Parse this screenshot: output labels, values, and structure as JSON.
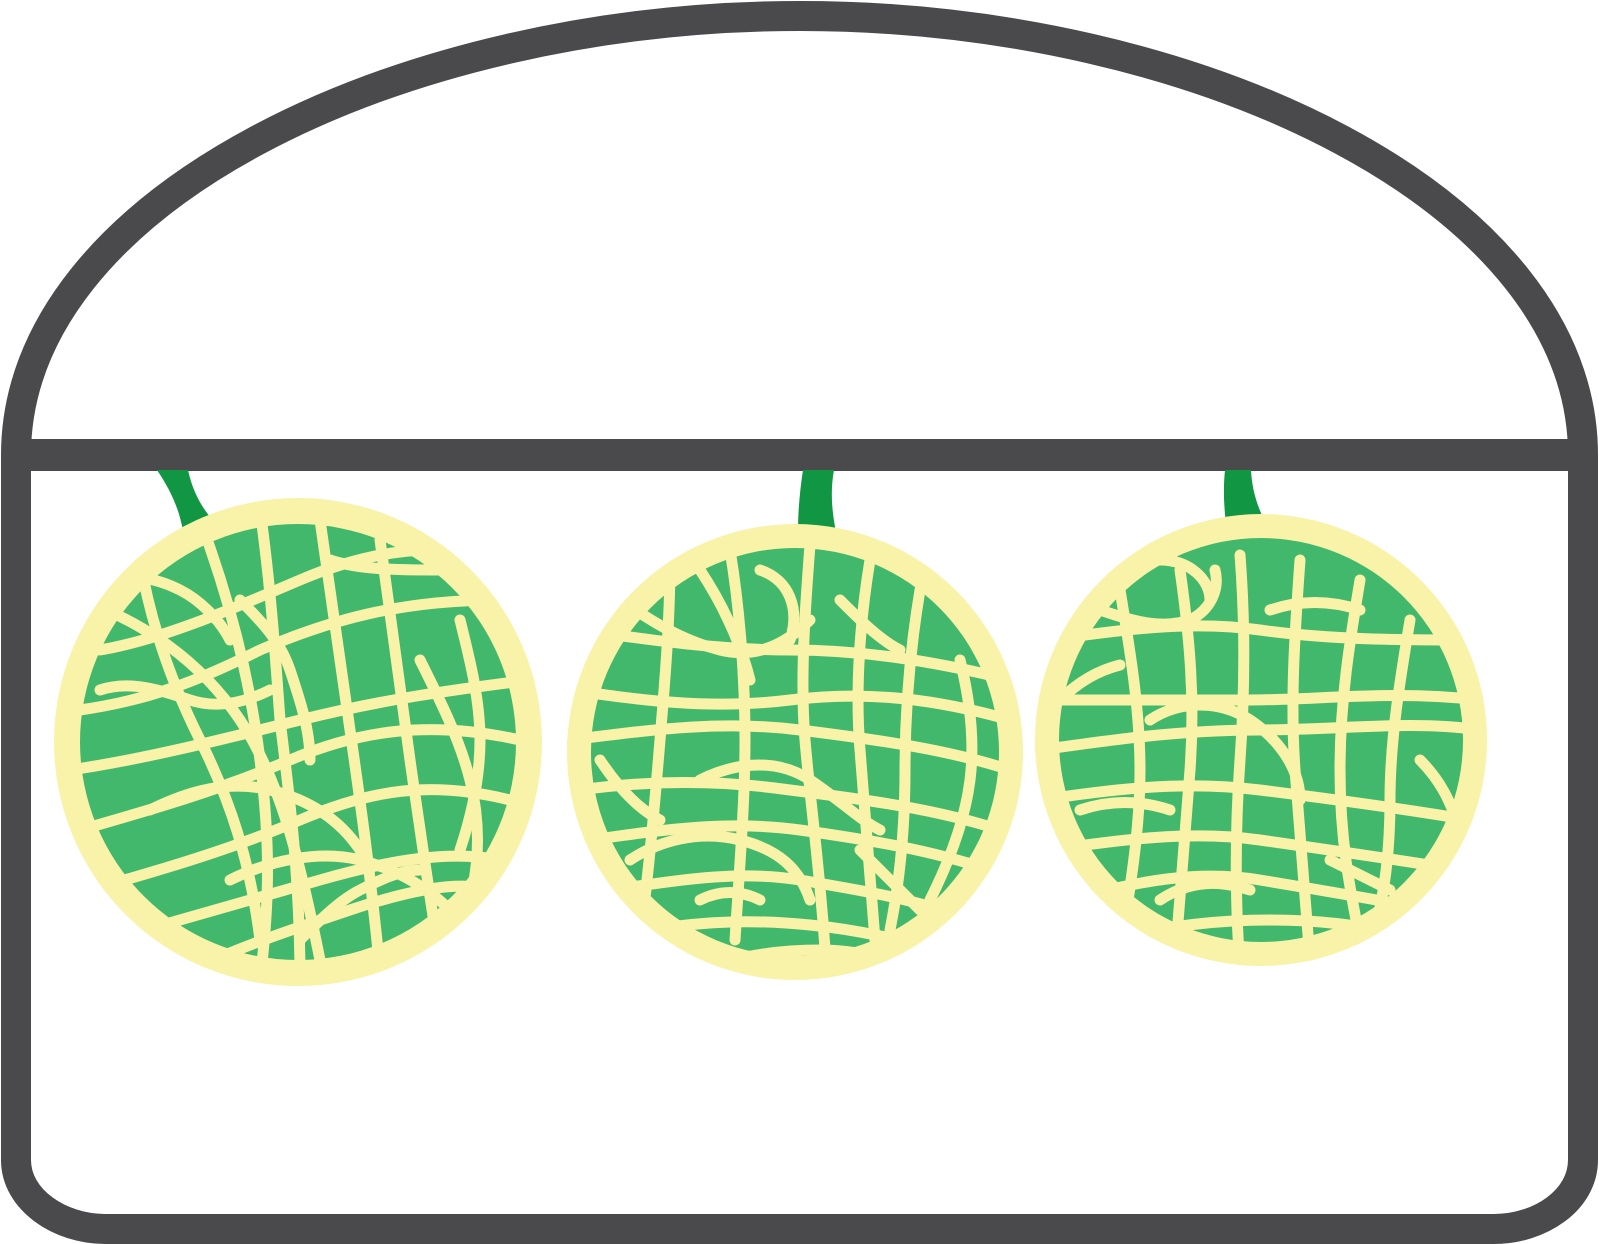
{
  "colors": {
    "outline": "#4a4a4c",
    "background": "#ffffff",
    "melon_rind": "#f8f3a8",
    "melon_flesh": "#41b86b",
    "stem": "#119643"
  },
  "melons": [
    {
      "name": "left-melon",
      "icon": "melon-icon"
    },
    {
      "name": "center-melon",
      "icon": "melon-icon"
    },
    {
      "name": "right-melon",
      "icon": "melon-icon"
    }
  ]
}
